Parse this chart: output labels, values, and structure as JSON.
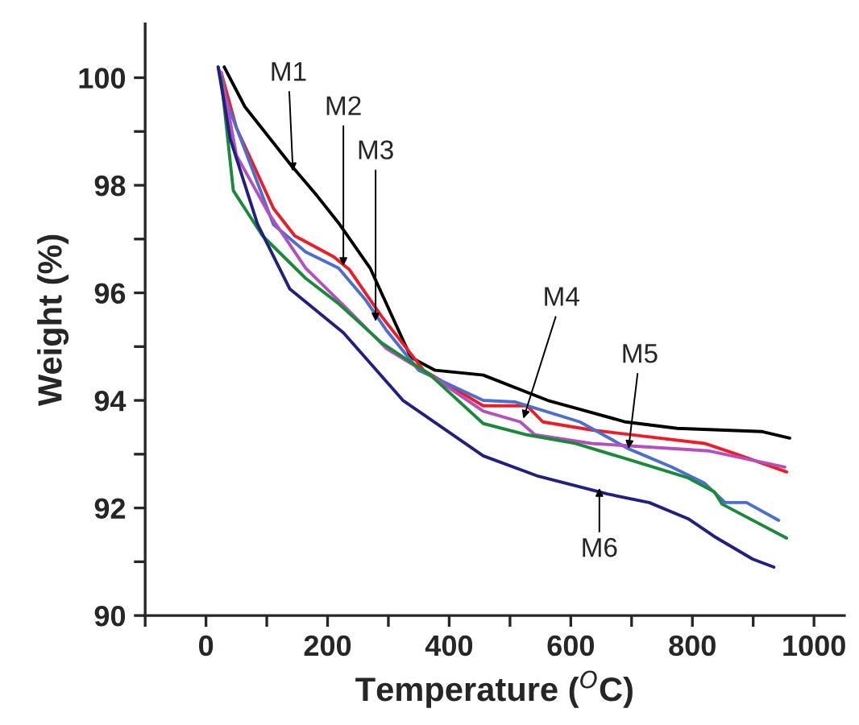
{
  "chart_data": {
    "type": "line",
    "xlabel": "Temperature ($^{O}$C)",
    "ylabel": "Weight (%)",
    "xlim": [
      -100,
      1050
    ],
    "ylim": [
      90,
      101
    ],
    "xticks": [
      {
        "value": -100,
        "label": null
      },
      0,
      {
        "value": 100,
        "label": null
      },
      200,
      {
        "value": 300,
        "label": null
      },
      400,
      {
        "value": 500,
        "label": null
      },
      600,
      {
        "value": 700,
        "label": null
      },
      800,
      {
        "value": 900,
        "label": null
      },
      1000
    ],
    "yticks": [
      90,
      {
        "value": 91,
        "label": null
      },
      92,
      {
        "value": 93,
        "label": null
      },
      94,
      {
        "value": 95,
        "label": null
      },
      96,
      {
        "value": 97,
        "label": null
      },
      98,
      {
        "value": 99,
        "label": null
      },
      100
    ],
    "grid": false,
    "legend": false,
    "marker": "none",
    "line_style": "solid",
    "series": [
      {
        "color": "#000000",
        "x": [
          30,
          64,
          138,
          183,
          218,
          270,
          337,
          377,
          430,
          456,
          562,
          690,
          775,
          915,
          960
        ],
        "values": [
          100.2,
          99.46,
          98.4,
          97.8,
          97.3,
          96.46,
          94.8,
          94.56,
          94.5,
          94.47,
          94.0,
          93.6,
          93.48,
          93.42,
          93.3
        ]
      },
      {
        "color": "#ee1c24",
        "x": [
          25,
          50,
          111,
          146,
          210,
          236,
          289,
          358,
          456,
          528,
          554,
          634,
          820,
          873,
          955
        ],
        "values": [
          100.1,
          99.07,
          97.57,
          97.06,
          96.67,
          96.43,
          95.56,
          94.56,
          93.9,
          93.9,
          93.6,
          93.45,
          93.2,
          93.0,
          92.67
        ]
      },
      {
        "color": "#4a6fd0",
        "x": [
          20,
          37,
          111,
          164,
          218,
          263,
          297,
          350,
          456,
          509,
          615,
          695,
          766,
          820,
          854,
          889,
          942
        ],
        "values": [
          100.2,
          99.46,
          97.27,
          96.76,
          96.46,
          95.86,
          95.3,
          94.56,
          94.0,
          93.97,
          93.6,
          93.1,
          92.76,
          92.46,
          92.1,
          92.1,
          91.77
        ]
      },
      {
        "color": "#b44fc0",
        "x": [
          25,
          50,
          103,
          164,
          226,
          297,
          369,
          456,
          517,
          541,
          634,
          828,
          952
        ],
        "values": [
          100.1,
          98.56,
          97.48,
          96.46,
          95.77,
          94.96,
          94.47,
          93.8,
          93.6,
          93.36,
          93.2,
          93.06,
          92.76
        ]
      },
      {
        "color": "#1a8a3a",
        "x": [
          25,
          45,
          93,
          164,
          218,
          289,
          369,
          456,
          528,
          607,
          695,
          793,
          836,
          849,
          955
        ],
        "values": [
          100.0,
          97.9,
          97.06,
          96.27,
          95.8,
          95.07,
          94.47,
          93.57,
          93.36,
          93.2,
          92.9,
          92.56,
          92.3,
          92.07,
          91.44
        ]
      },
      {
        "color": "#1f2080",
        "x": [
          20,
          40,
          85,
          138,
          226,
          324,
          456,
          544,
          660,
          729,
          793,
          836,
          899,
          934
        ],
        "values": [
          100.2,
          98.86,
          97.27,
          96.07,
          95.26,
          94.0,
          92.97,
          92.6,
          92.26,
          92.1,
          91.8,
          91.47,
          91.05,
          90.9
        ]
      }
    ],
    "annotations": [
      {
        "text": "M1",
        "x": 143,
        "y": 98.26
      },
      {
        "text": "M2",
        "x": 226,
        "y": 96.5
      },
      {
        "text": "M3",
        "x": 279,
        "y": 95.47
      },
      {
        "text": "M4",
        "x": 522,
        "y": 93.66
      },
      {
        "text": "M5",
        "x": 695,
        "y": 93.1
      },
      {
        "text": "M6",
        "x": 647,
        "y": 92.37
      }
    ]
  }
}
